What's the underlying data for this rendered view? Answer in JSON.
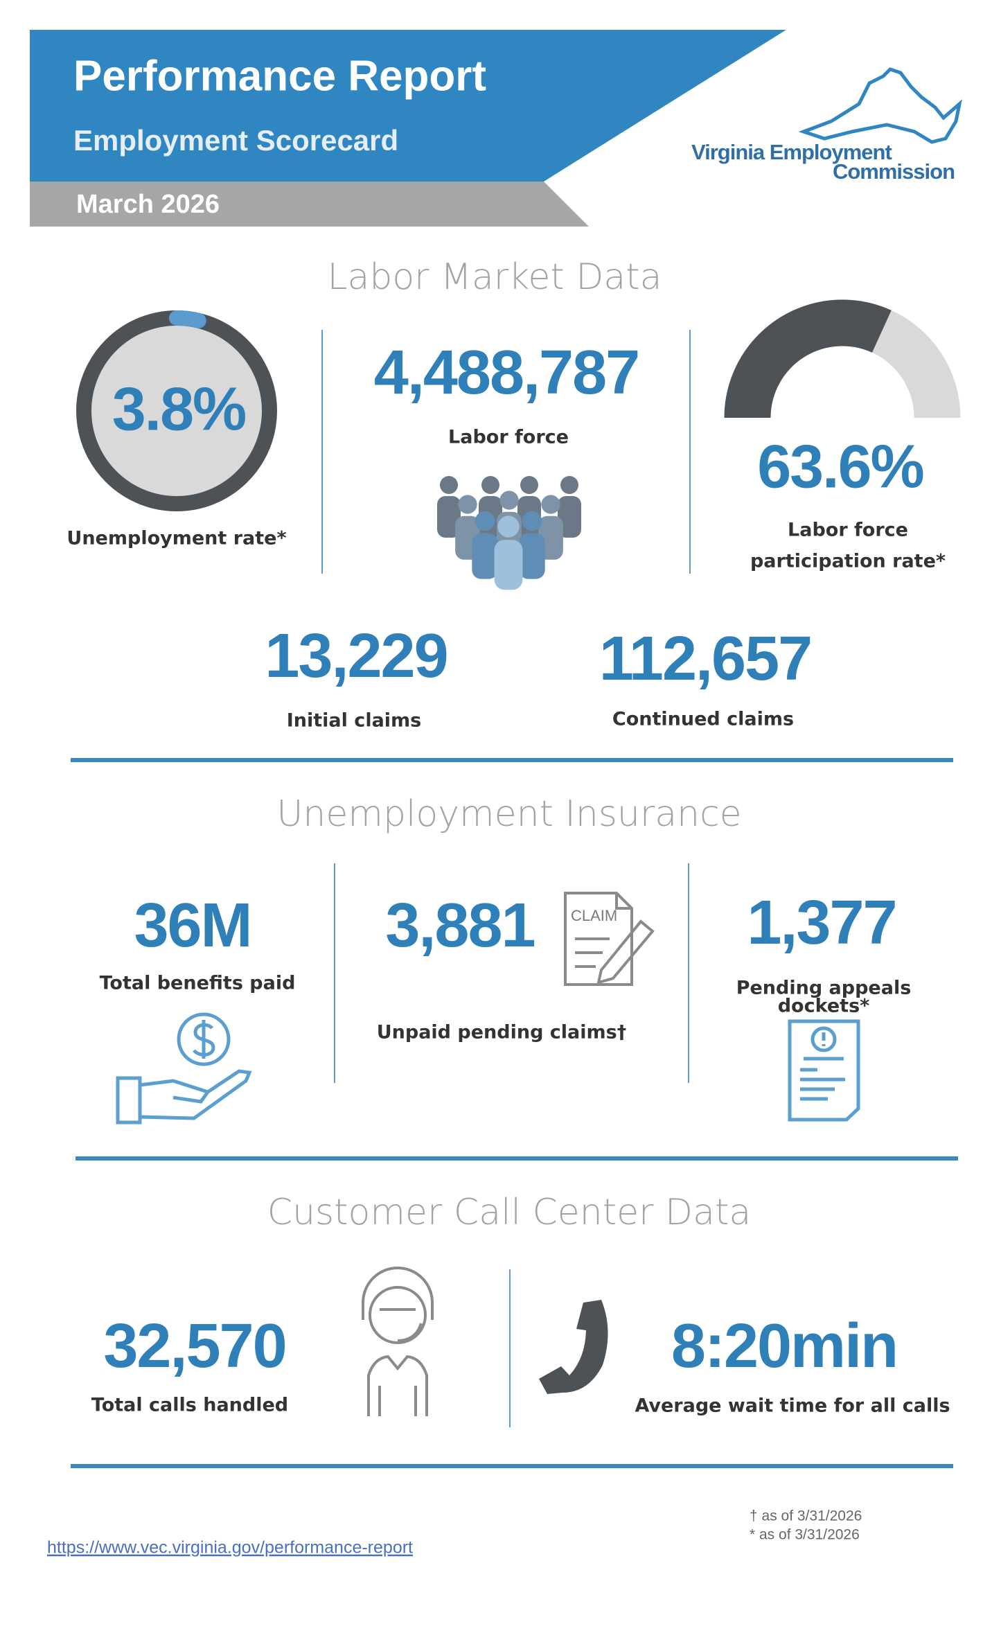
{
  "header": {
    "title": "Performance Report",
    "subtitle": "Employment Scorecard",
    "date": "March 2026",
    "logo": {
      "line1": "Virginia Employment",
      "line2": "Commission"
    }
  },
  "labor_market": {
    "heading": "Labor Market Data",
    "unemployment_rate": {
      "value": 3.8,
      "value_label": "3.8%",
      "label": "Unemployment  rate*"
    },
    "labor_force": {
      "value": "4,488,787",
      "label": "Labor force"
    },
    "participation_rate": {
      "value": 63.6,
      "value_label": "63.6%",
      "label_lines": [
        "Labor force",
        "participation rate*"
      ]
    },
    "initial_claims": {
      "value": "13,229",
      "label": "Initial claims"
    },
    "continued_claims": {
      "value": "112,657",
      "label": "Continued claims"
    }
  },
  "unemployment_insurance": {
    "heading": "Unemployment Insurance",
    "benefits_paid": {
      "value": "36M",
      "label": "Total benefits paid"
    },
    "pending_claims": {
      "value": "3,881",
      "label": "Unpaid pending claims†",
      "icon_text": "CLAIM"
    },
    "appeals": {
      "value": "1,377",
      "label_lines": [
        "Pending appeals",
        "dockets*"
      ]
    }
  },
  "call_center": {
    "heading": "Customer Call Center Data",
    "calls_handled": {
      "value": "32,570",
      "label": "Total calls handled"
    },
    "wait_time": {
      "value": "8:20min",
      "label": "Average wait time for all calls"
    }
  },
  "footer": {
    "notes": [
      "† as of 3/31/2026",
      "* as of 3/31/2026"
    ],
    "url": "https://www.vec.virginia.gov/performance-report"
  }
}
